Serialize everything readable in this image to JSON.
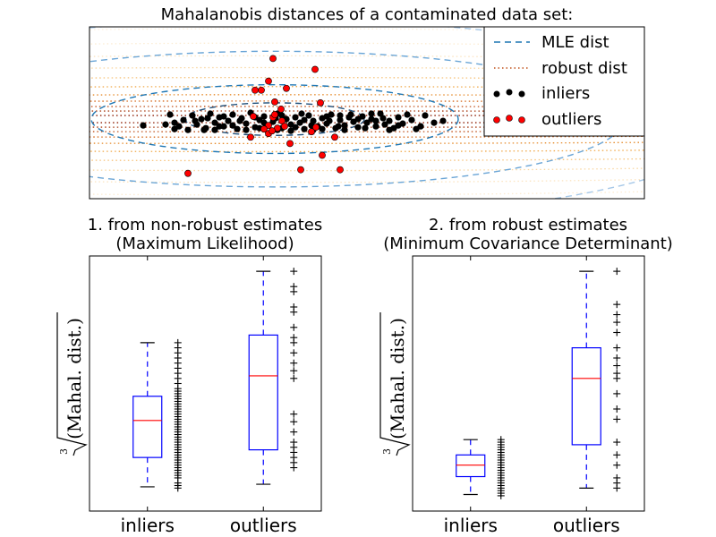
{
  "chart_data": [
    {
      "type": "scatter",
      "title": "Mahalanobis distances of a contaminated data set:",
      "grid": false,
      "legend": {
        "placement": "top-right",
        "entries": [
          {
            "label": "MLE dist",
            "style": "dashed",
            "color": "#1f77b4"
          },
          {
            "label": "robust dist",
            "style": "dotted",
            "color": "#c0511a"
          },
          {
            "label": "inliers",
            "style": "marker",
            "color": "#000000"
          },
          {
            "label": "outliers",
            "style": "marker",
            "color": "#ff0000"
          }
        ]
      },
      "colors": {
        "mle": "#1f77b4",
        "robust": "#c0511a",
        "inliers": "#000000",
        "outliers": "#ff0000",
        "outlier_edge": "#000000"
      },
      "xlim": [
        0,
        620
      ],
      "ylim": [
        0,
        190
      ],
      "contours": {
        "center": [
          207,
          102
        ],
        "mle_radii": [
          [
            100,
            18
          ],
          [
            205,
            38
          ],
          [
            390,
            75
          ],
          [
            520,
            110
          ],
          [
            640,
            145
          ]
        ],
        "robust_half_heights": [
          4,
          9,
          14,
          20,
          27,
          36,
          46,
          57,
          70,
          84,
          100,
          118
        ]
      },
      "series": [
        {
          "name": "inliers",
          "points": [
            [
              60,
              109
            ],
            [
              85,
              108
            ],
            [
              90,
              97
            ],
            [
              95,
              106
            ],
            [
              100,
              110
            ],
            [
              105,
              103
            ],
            [
              110,
              114
            ],
            [
              115,
              98
            ],
            [
              120,
              108
            ],
            [
              125,
              102
            ],
            [
              130,
              112
            ],
            [
              135,
              96
            ],
            [
              140,
              106
            ],
            [
              145,
              100
            ],
            [
              150,
              110
            ],
            [
              155,
              104
            ],
            [
              160,
              97
            ],
            [
              165,
              113
            ],
            [
              170,
              101
            ],
            [
              175,
              107
            ],
            [
              180,
              95
            ],
            [
              185,
              111
            ],
            [
              190,
              103
            ],
            [
              195,
              99
            ],
            [
              200,
              109
            ],
            [
              205,
              105
            ],
            [
              210,
              96
            ],
            [
              215,
              112
            ],
            [
              220,
              102
            ],
            [
              225,
              108
            ],
            [
              230,
              100
            ],
            [
              235,
              106
            ],
            [
              240,
              113
            ],
            [
              245,
              98
            ],
            [
              250,
              104
            ],
            [
              255,
              110
            ],
            [
              260,
              101
            ],
            [
              265,
              107
            ],
            [
              270,
              97
            ],
            [
              275,
              112
            ],
            [
              280,
              103
            ],
            [
              285,
              109
            ],
            [
              290,
              100
            ],
            [
              295,
              105
            ],
            [
              300,
              111
            ],
            [
              305,
              99
            ],
            [
              310,
              106
            ],
            [
              315,
              102
            ],
            [
              320,
              110
            ],
            [
              325,
              96
            ],
            [
              330,
              108
            ],
            [
              335,
              104
            ],
            [
              340,
              112
            ],
            [
              345,
              100
            ],
            [
              350,
              107
            ],
            [
              360,
              103
            ],
            [
              365,
              113
            ],
            [
              375,
              98
            ],
            [
              385,
              106
            ],
            [
              140,
              114
            ],
            [
              160,
              109
            ],
            [
              175,
              114
            ],
            [
              195,
              106
            ],
            [
              215,
              98
            ],
            [
              230,
              111
            ],
            [
              250,
              114
            ],
            [
              265,
              99
            ],
            [
              285,
              114
            ],
            [
              300,
              102
            ],
            [
              320,
              104
            ],
            [
              150,
              99
            ],
            [
              185,
              100
            ],
            [
              240,
              103
            ],
            [
              260,
              113
            ],
            [
              280,
              98
            ],
            [
              335,
              114
            ],
            [
              95,
              113
            ],
            [
              118,
              104
            ],
            [
              128,
              114
            ],
            [
              210,
              114
            ],
            [
              132,
              101
            ],
            [
              145,
              110
            ],
            [
              168,
              104
            ],
            [
              190,
              112
            ],
            [
              208,
              101
            ],
            [
              225,
              115
            ],
            [
              237,
              96
            ],
            [
              248,
              109
            ],
            [
              268,
              104
            ],
            [
              278,
              110
            ],
            [
              292,
              97
            ],
            [
              308,
              112
            ],
            [
              315,
              96
            ],
            [
              328,
              101
            ],
            [
              345,
              109
            ],
            [
              355,
              97
            ],
            [
              370,
              110
            ],
            [
              395,
              104
            ]
          ]
        },
        {
          "name": "outliers",
          "points": [
            [
              110,
              162
            ],
            [
              236,
              158
            ],
            [
              260,
              142
            ],
            [
              280,
              158
            ],
            [
              224,
              129
            ],
            [
              274,
              122
            ],
            [
              205,
              100
            ],
            [
              210,
              112
            ],
            [
              215,
              104
            ],
            [
              200,
              109
            ],
            [
              200,
              118
            ],
            [
              207,
              97
            ],
            [
              204,
              115
            ],
            [
              214,
              91
            ],
            [
              218,
              110
            ],
            [
              183,
              99
            ],
            [
              180,
              122
            ],
            [
              207,
              83
            ],
            [
              220,
              68
            ],
            [
              258,
              84
            ],
            [
              253,
              111
            ],
            [
              248,
              116
            ],
            [
              195,
              113
            ],
            [
              192,
              70
            ],
            [
              200,
              60
            ],
            [
              185,
              70
            ],
            [
              252,
              47
            ],
            [
              205,
              35
            ]
          ]
        }
      ]
    },
    {
      "type": "box",
      "title": "1. from non-robust estimates\n(Maximum Likelihood)",
      "title_lines": [
        "1. from non-robust estimates",
        "(Maximum Likelihood)"
      ],
      "ylabel": "Mahal. dist.",
      "ylabel_index": "3",
      "categories": [
        "inliers",
        "outliers"
      ],
      "ylim": [
        0,
        1
      ],
      "box_color": "#0000ff",
      "median_color": "#ff0000",
      "boxes": [
        {
          "whislo": 0.095,
          "q1": 0.21,
          "med": 0.355,
          "q3": 0.45,
          "whishi": 0.66
        },
        {
          "whislo": 0.105,
          "q1": 0.24,
          "med": 0.53,
          "q3": 0.69,
          "whishi": 0.94
        }
      ],
      "points": [
        [
          0.09,
          0.1,
          0.11,
          0.13,
          0.14,
          0.15,
          0.16,
          0.17,
          0.18,
          0.19,
          0.2,
          0.21,
          0.22,
          0.23,
          0.24,
          0.25,
          0.26,
          0.27,
          0.28,
          0.29,
          0.3,
          0.31,
          0.32,
          0.33,
          0.34,
          0.35,
          0.36,
          0.37,
          0.38,
          0.39,
          0.4,
          0.41,
          0.42,
          0.43,
          0.44,
          0.45,
          0.46,
          0.47,
          0.48,
          0.5,
          0.52,
          0.54,
          0.56,
          0.58,
          0.6,
          0.62,
          0.64,
          0.66
        ],
        [
          0.17,
          0.19,
          0.21,
          0.23,
          0.25,
          0.27,
          0.31,
          0.35,
          0.38,
          0.52,
          0.55,
          0.58,
          0.62,
          0.66,
          0.68,
          0.72,
          0.78,
          0.8,
          0.86,
          0.88,
          0.94
        ]
      ]
    },
    {
      "type": "box",
      "title": "2. from robust estimates\n(Minimum Covariance Determinant)",
      "title_lines": [
        "2. from robust estimates",
        "(Minimum Covariance Determinant)"
      ],
      "ylabel": "Mahal. dist.",
      "ylabel_index": "3",
      "categories": [
        "inliers",
        "outliers"
      ],
      "ylim": [
        0,
        1
      ],
      "box_color": "#0000ff",
      "median_color": "#ff0000",
      "boxes": [
        {
          "whislo": 0.065,
          "q1": 0.135,
          "med": 0.18,
          "q3": 0.22,
          "whishi": 0.28
        },
        {
          "whislo": 0.09,
          "q1": 0.26,
          "med": 0.52,
          "q3": 0.64,
          "whishi": 0.94
        }
      ],
      "points": [
        [
          0.06,
          0.07,
          0.08,
          0.09,
          0.1,
          0.11,
          0.12,
          0.13,
          0.14,
          0.15,
          0.16,
          0.17,
          0.18,
          0.19,
          0.2,
          0.21,
          0.22,
          0.23,
          0.24,
          0.25,
          0.26,
          0.27,
          0.28
        ],
        [
          0.09,
          0.11,
          0.13,
          0.18,
          0.22,
          0.27,
          0.36,
          0.4,
          0.46,
          0.52,
          0.54,
          0.57,
          0.6,
          0.64,
          0.7,
          0.74,
          0.77,
          0.81,
          0.94
        ]
      ]
    }
  ]
}
